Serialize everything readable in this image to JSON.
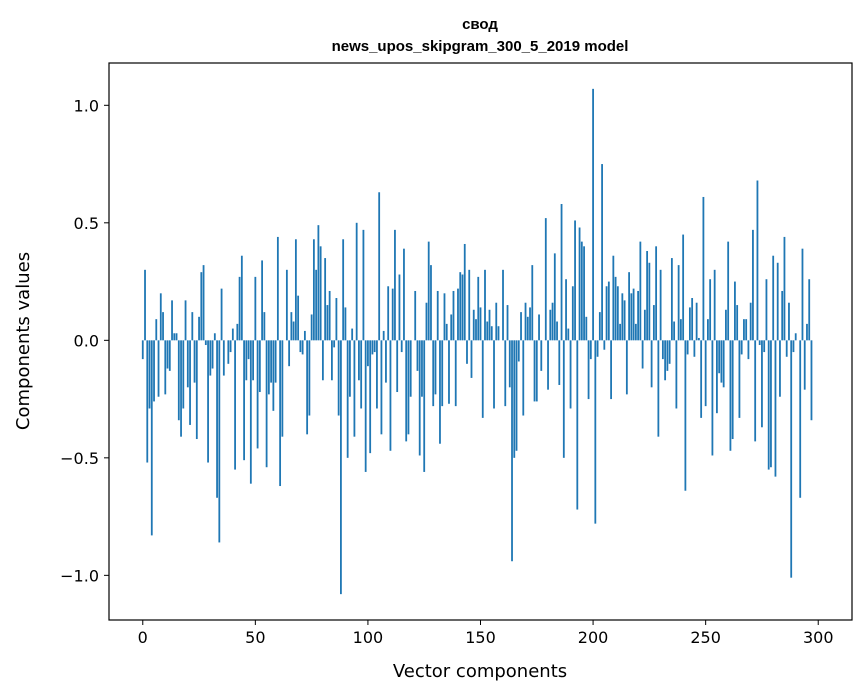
{
  "chart_data": {
    "type": "bar",
    "title": "свод",
    "subtitle": "news_upos_skipgram_300_5_2019 model",
    "xlabel": "Vector components",
    "ylabel": "Components values",
    "xlim": [
      -15,
      315
    ],
    "ylim": [
      -1.19,
      1.18
    ],
    "xticks": [
      0,
      50,
      100,
      150,
      200,
      250,
      300
    ],
    "xtick_labels": [
      "0",
      "50",
      "100",
      "150",
      "200",
      "250",
      "300"
    ],
    "yticks": [
      -1.0,
      -0.5,
      0.0,
      0.5,
      1.0
    ],
    "ytick_labels": [
      "−1.0",
      "−0.5",
      "0.0",
      "0.5",
      "1.0"
    ],
    "grid": false,
    "bar_color": "#1f77b4",
    "values": [
      -0.08,
      0.3,
      -0.52,
      -0.29,
      -0.83,
      -0.26,
      0.09,
      -0.24,
      0.2,
      0.12,
      -0.23,
      -0.12,
      -0.13,
      0.17,
      0.03,
      0.03,
      -0.34,
      -0.41,
      -0.29,
      0.17,
      -0.2,
      -0.36,
      0.12,
      -0.18,
      -0.42,
      0.1,
      0.29,
      0.32,
      -0.02,
      -0.52,
      -0.15,
      -0.12,
      0.03,
      -0.67,
      -0.86,
      0.22,
      -0.15,
      0.0,
      -0.1,
      -0.05,
      0.05,
      -0.55,
      0.07,
      0.27,
      0.36,
      -0.51,
      -0.17,
      -0.08,
      -0.61,
      -0.17,
      0.27,
      -0.46,
      -0.22,
      0.34,
      0.12,
      -0.54,
      -0.23,
      -0.18,
      -0.3,
      -0.18,
      0.44,
      -0.62,
      -0.41,
      0.0,
      0.3,
      -0.11,
      0.12,
      0.08,
      0.43,
      0.19,
      -0.05,
      -0.06,
      0.04,
      -0.4,
      -0.32,
      0.11,
      0.43,
      0.3,
      0.49,
      0.4,
      -0.17,
      0.35,
      0.15,
      0.21,
      -0.17,
      -0.03,
      0.18,
      -0.32,
      -1.08,
      0.43,
      0.14,
      -0.5,
      -0.24,
      0.05,
      -0.41,
      0.5,
      -0.17,
      -0.29,
      0.47,
      -0.56,
      -0.11,
      -0.48,
      -0.06,
      -0.05,
      -0.29,
      0.63,
      -0.4,
      0.04,
      -0.18,
      0.23,
      -0.47,
      0.22,
      0.47,
      -0.22,
      0.28,
      -0.05,
      0.39,
      -0.43,
      -0.4,
      -0.24,
      0.0,
      0.21,
      -0.13,
      -0.49,
      -0.24,
      -0.56,
      0.16,
      0.42,
      0.32,
      -0.28,
      -0.23,
      0.21,
      -0.44,
      -0.28,
      0.2,
      0.07,
      -0.27,
      0.11,
      0.21,
      -0.28,
      0.22,
      0.29,
      0.28,
      0.41,
      -0.1,
      0.3,
      -0.16,
      0.13,
      0.09,
      0.27,
      0.14,
      -0.33,
      0.3,
      0.08,
      0.13,
      0.06,
      -0.29,
      0.16,
      0.06,
      0.0,
      0.3,
      -0.28,
      0.15,
      -0.2,
      -0.94,
      -0.5,
      -0.47,
      -0.09,
      0.12,
      -0.32,
      0.16,
      0.1,
      0.14,
      0.32,
      -0.26,
      -0.26,
      0.11,
      -0.13,
      0.0,
      0.52,
      -0.21,
      0.13,
      0.16,
      0.37,
      0.08,
      -0.19,
      0.58,
      -0.5,
      0.26,
      0.05,
      -0.29,
      0.23,
      0.51,
      -0.72,
      0.48,
      0.42,
      0.4,
      0.1,
      -0.25,
      -0.08,
      1.07,
      -0.78,
      -0.07,
      0.12,
      0.75,
      -0.04,
      0.23,
      0.25,
      -0.25,
      0.36,
      0.27,
      0.23,
      0.07,
      0.2,
      0.17,
      -0.23,
      0.29,
      0.2,
      0.22,
      0.07,
      0.21,
      0.42,
      -0.12,
      0.13,
      0.38,
      0.33,
      -0.2,
      0.15,
      0.4,
      -0.41,
      0.3,
      -0.08,
      -0.17,
      -0.13,
      -0.1,
      0.35,
      0.08,
      -0.29,
      0.32,
      0.09,
      0.45,
      -0.64,
      -0.06,
      0.14,
      0.18,
      -0.07,
      0.16,
      0.01,
      -0.33,
      0.61,
      -0.28,
      0.09,
      0.26,
      -0.49,
      0.3,
      -0.31,
      -0.14,
      -0.18,
      -0.2,
      0.13,
      0.42,
      -0.47,
      -0.42,
      0.25,
      0.15,
      -0.33,
      -0.06,
      0.09,
      0.09,
      -0.08,
      0.16,
      0.47,
      -0.43,
      0.68,
      -0.02,
      -0.37,
      -0.05,
      0.26,
      -0.55,
      -0.54,
      0.36,
      -0.58,
      0.33,
      -0.24,
      0.21,
      0.44,
      -0.07,
      0.16,
      -1.01,
      -0.05,
      0.03,
      0.0,
      -0.67,
      0.39,
      -0.21,
      0.07,
      0.26,
      -0.34
    ]
  }
}
